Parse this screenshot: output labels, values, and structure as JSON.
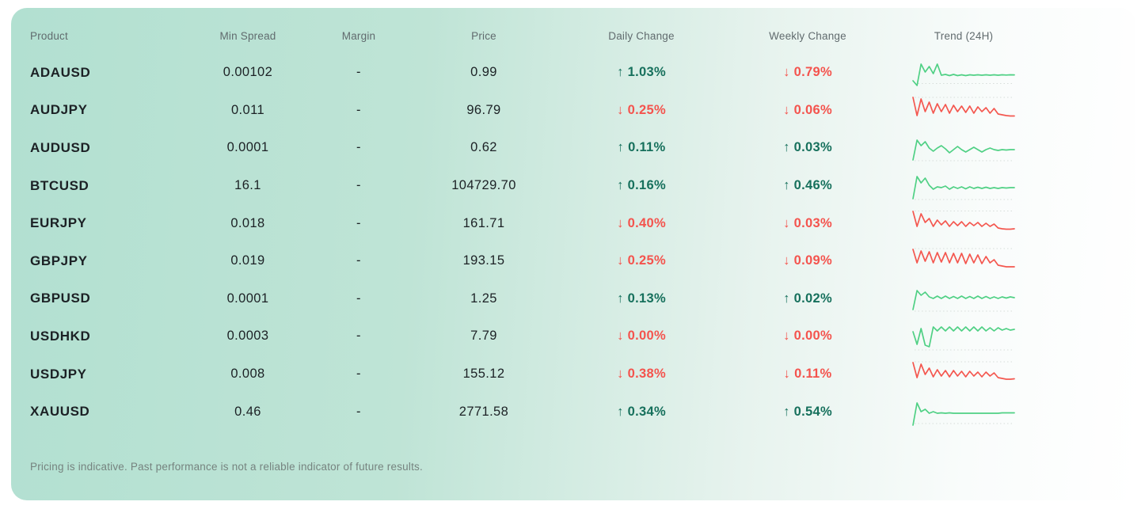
{
  "table": {
    "columns": [
      "Product",
      "Min Spread",
      "Margin",
      "Price",
      "Daily Change",
      "Weekly Change",
      "Trend (24H)"
    ],
    "rows": [
      {
        "product": "ADAUSD",
        "min_spread": "0.00102",
        "margin": "-",
        "price": "0.99",
        "daily_change": {
          "direction": "up",
          "arrow": "↑",
          "value": "1.03%"
        },
        "weekly_change": {
          "direction": "down",
          "arrow": "↓",
          "value": "0.79%"
        },
        "trend": {
          "direction": "up",
          "baseline": 33.5,
          "points": [
            30,
            36,
            9,
            19,
            12,
            21,
            9,
            23,
            22,
            23.5,
            22,
            23.5,
            22.5,
            23.5,
            22.5,
            23,
            22.5,
            23,
            22.5,
            23,
            22.5,
            23,
            22.5,
            22.8,
            22.5,
            22.6
          ]
        }
      },
      {
        "product": "AUDJPY",
        "min_spread": "0.011",
        "margin": "-",
        "price": "96.79",
        "daily_change": {
          "direction": "down",
          "arrow": "↓",
          "value": "0.25%"
        },
        "weekly_change": {
          "direction": "down",
          "arrow": "↓",
          "value": "0.06%"
        },
        "trend": {
          "direction": "down",
          "baseline": 4,
          "points": [
            4,
            27,
            6,
            22,
            10,
            24,
            12,
            22,
            13,
            24,
            14,
            22,
            15,
            23,
            15,
            24,
            16,
            22,
            17,
            24,
            18,
            25,
            26,
            27,
            27.5,
            27.5
          ]
        }
      },
      {
        "product": "AUDUSD",
        "min_spread": "0.0001",
        "margin": "-",
        "price": "0.62",
        "daily_change": {
          "direction": "up",
          "arrow": "↑",
          "value": "0.11%"
        },
        "weekly_change": {
          "direction": "up",
          "arrow": "↑",
          "value": "0.03%"
        },
        "trend": {
          "direction": "up",
          "baseline": 36,
          "points": [
            35,
            10,
            17,
            12,
            20,
            24,
            20,
            17,
            21,
            26,
            22,
            18,
            22,
            25,
            22,
            19,
            22,
            25,
            22,
            20,
            22,
            23,
            22,
            22.5,
            22,
            22
          ]
        }
      },
      {
        "product": "BTCUSD",
        "min_spread": "16.1",
        "margin": "-",
        "price": "104729.70",
        "daily_change": {
          "direction": "up",
          "arrow": "↑",
          "value": "0.16%"
        },
        "weekly_change": {
          "direction": "up",
          "arrow": "↑",
          "value": "0.46%"
        },
        "trend": {
          "direction": "up",
          "baseline": 37,
          "points": [
            36,
            8,
            16,
            10,
            19,
            24,
            21,
            22,
            20,
            24,
            21,
            23,
            21,
            23.5,
            21,
            23,
            21.5,
            23,
            21.5,
            23,
            22,
            23,
            22,
            22.5,
            22,
            22
          ]
        }
      },
      {
        "product": "EURJPY",
        "min_spread": "0.018",
        "margin": "-",
        "price": "161.71",
        "daily_change": {
          "direction": "down",
          "arrow": "↓",
          "value": "0.40%"
        },
        "weekly_change": {
          "direction": "down",
          "arrow": "↓",
          "value": "0.03%"
        },
        "trend": {
          "direction": "down",
          "baseline": 4.5,
          "points": [
            5,
            24,
            8,
            19,
            14,
            24,
            16,
            22,
            17,
            24,
            18,
            23,
            18,
            24,
            19,
            23,
            19,
            24,
            20,
            24,
            21,
            26,
            27,
            27.5,
            27.5,
            27
          ]
        }
      },
      {
        "product": "GBPJPY",
        "min_spread": "0.019",
        "margin": "-",
        "price": "193.15",
        "daily_change": {
          "direction": "down",
          "arrow": "↓",
          "value": "0.25%"
        },
        "weekly_change": {
          "direction": "down",
          "arrow": "↓",
          "value": "0.09%"
        },
        "trend": {
          "direction": "down",
          "baseline": 4,
          "points": [
            5,
            22,
            7,
            20,
            8,
            22,
            9,
            21,
            9,
            22,
            10,
            22,
            10,
            23,
            11,
            22,
            12,
            23,
            14,
            22,
            18,
            25,
            26,
            27,
            27,
            27
          ]
        }
      },
      {
        "product": "GBPUSD",
        "min_spread": "0.0001",
        "margin": "-",
        "price": "1.25",
        "daily_change": {
          "direction": "up",
          "arrow": "↑",
          "value": "0.13%"
        },
        "weekly_change": {
          "direction": "up",
          "arrow": "↑",
          "value": "0.02%"
        },
        "trend": {
          "direction": "up",
          "baseline": 36,
          "points": [
            34,
            10,
            16,
            12,
            18,
            20,
            17,
            20,
            17,
            20,
            17.5,
            20,
            17,
            20,
            17.5,
            20,
            17,
            20,
            17.5,
            20,
            18,
            20,
            18,
            19.5,
            18,
            19
          ]
        }
      },
      {
        "product": "USDHKD",
        "min_spread": "0.0003",
        "margin": "-",
        "price": "7.79",
        "daily_change": {
          "direction": "down",
          "arrow": "↓",
          "value": "0.00%"
        },
        "weekly_change": {
          "direction": "down",
          "arrow": "↓",
          "value": "0.00%"
        },
        "trend": {
          "direction": "up",
          "baseline": 37,
          "points": [
            14,
            30,
            10,
            31,
            33,
            8,
            13,
            8,
            13,
            8,
            13,
            8,
            13,
            8,
            13,
            8,
            13,
            8,
            13,
            9,
            13,
            9,
            12,
            10,
            12,
            11
          ]
        }
      },
      {
        "product": "USDJPY",
        "min_spread": "0.008",
        "margin": "-",
        "price": "155.12",
        "daily_change": {
          "direction": "down",
          "arrow": "↓",
          "value": "0.38%"
        },
        "weekly_change": {
          "direction": "down",
          "arrow": "↓",
          "value": "0.11%"
        },
        "trend": {
          "direction": "down",
          "baseline": 4,
          "points": [
            5,
            24,
            7,
            20,
            12,
            23,
            14,
            22,
            15,
            23,
            15,
            22,
            16,
            23,
            16,
            22,
            17,
            23,
            17,
            22,
            18,
            24,
            25,
            26,
            26,
            25.5
          ]
        }
      },
      {
        "product": "XAUUSD",
        "min_spread": "0.46",
        "margin": "-",
        "price": "2771.58",
        "daily_change": {
          "direction": "up",
          "arrow": "↑",
          "value": "0.34%"
        },
        "weekly_change": {
          "direction": "up",
          "arrow": "↑",
          "value": "0.54%"
        },
        "trend": {
          "direction": "up",
          "baseline": 35,
          "points": [
            37,
            9,
            20,
            17,
            22,
            20,
            22,
            21.5,
            22,
            21.5,
            22,
            22,
            22,
            22,
            22,
            22,
            22,
            22,
            22,
            22,
            22,
            22,
            21.5,
            21.5,
            21.5,
            21.5
          ]
        }
      }
    ]
  },
  "footer": {
    "disclaimer": "Pricing is indicative. Past performance is not a reliable indicator of future results."
  },
  "colors": {
    "text_dark": "#1c2125",
    "header_gray": "#616b6e",
    "disclaimer_gray": "#76837f",
    "up": "#16705c",
    "down": "#f4534d",
    "spark_up": "#4fd084",
    "spark_down": "#f4574f",
    "baseline_dot": "#d7ddda",
    "card_start": "#b2e0d1",
    "card_end": "#ffffff"
  }
}
